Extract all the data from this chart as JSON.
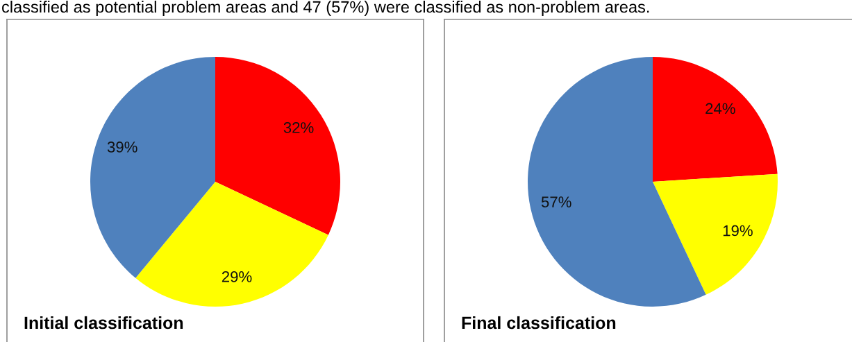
{
  "chart_data": [
    {
      "type": "pie",
      "title": "Initial classification",
      "categories": [
        null,
        null,
        null
      ],
      "values": [
        32,
        29,
        39
      ],
      "colors": [
        "#ff0000",
        "#ffff00",
        "#4f81bd"
      ],
      "value_labels": [
        "32%",
        "29%",
        "39%"
      ],
      "annotations": [
        "classified as potential problem areas and 47 (57%) were classified as non-problem areas."
      ]
    },
    {
      "type": "pie",
      "title": "Final classification",
      "categories": [
        null,
        null,
        null
      ],
      "values": [
        24,
        19,
        57
      ],
      "colors": [
        "#ff0000",
        "#ffff00",
        "#4f81bd"
      ],
      "value_labels": [
        "24%",
        "19%",
        "57%"
      ]
    }
  ]
}
